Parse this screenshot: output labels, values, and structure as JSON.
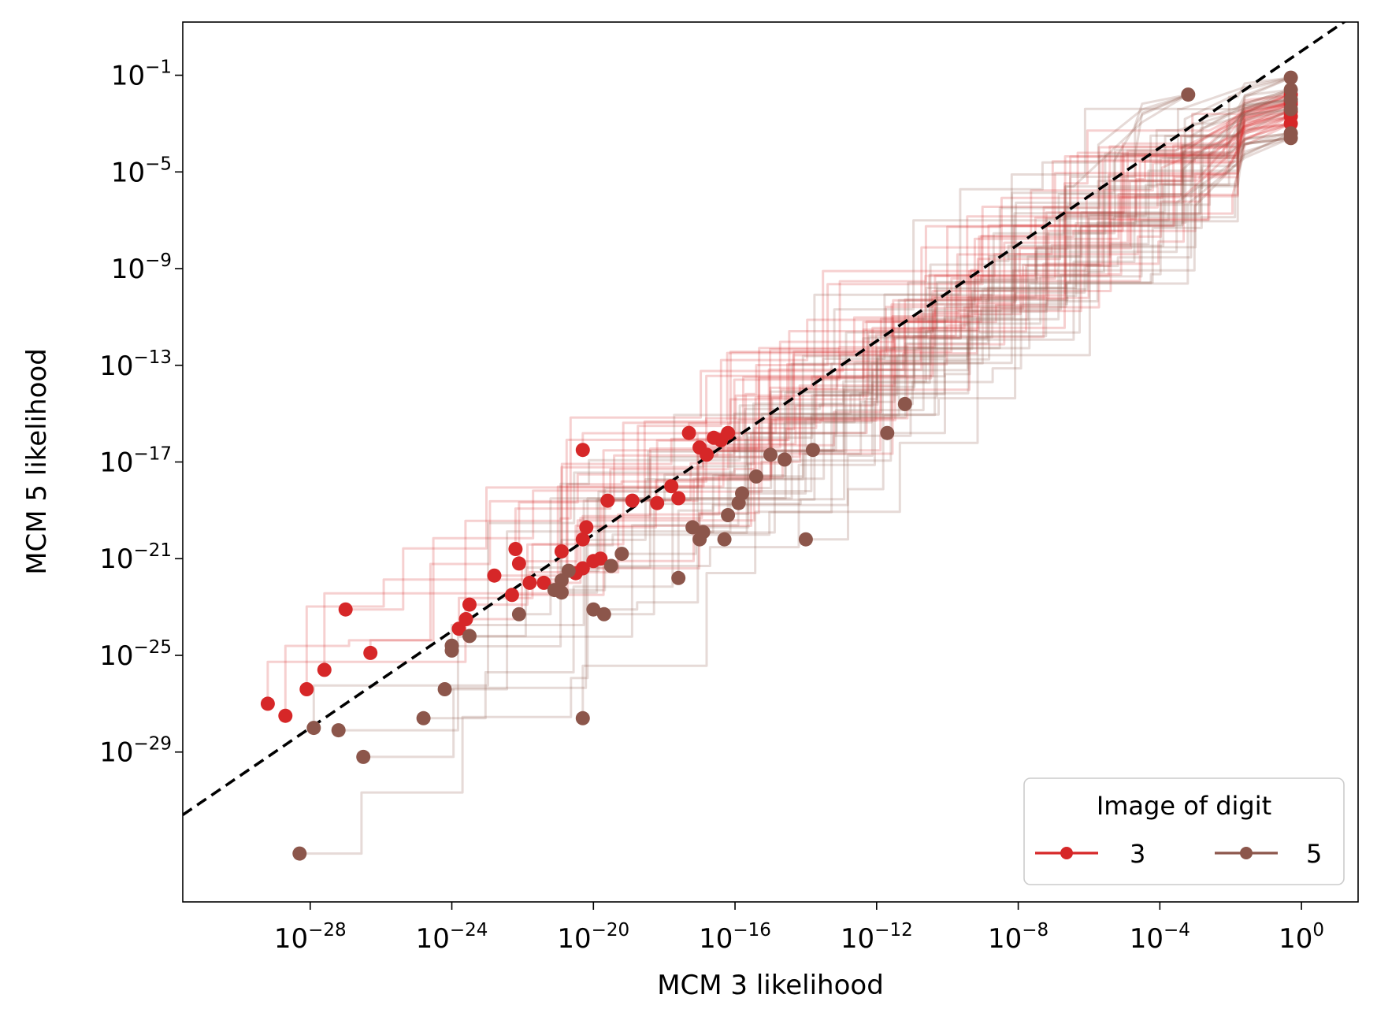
{
  "chart_data": {
    "type": "scatter",
    "title": "",
    "xlabel": "MCM 3 likelihood",
    "ylabel": "MCM 5 likelihood",
    "x_scale": "log",
    "y_scale": "log",
    "xlim_log10": [
      -31.6,
      1.6
    ],
    "ylim_log10": [
      -35.2,
      1.2
    ],
    "x_ticks": [
      {
        "exp": -28,
        "label": "10",
        "sup": "−28"
      },
      {
        "exp": -24,
        "label": "10",
        "sup": "−24"
      },
      {
        "exp": -20,
        "label": "10",
        "sup": "−20"
      },
      {
        "exp": -16,
        "label": "10",
        "sup": "−16"
      },
      {
        "exp": -12,
        "label": "10",
        "sup": "−12"
      },
      {
        "exp": -8,
        "label": "10",
        "sup": "−8"
      },
      {
        "exp": -4,
        "label": "10",
        "sup": "−4"
      },
      {
        "exp": 0,
        "label": "10",
        "sup": "0"
      }
    ],
    "y_ticks": [
      {
        "exp": -1,
        "label": "10",
        "sup": "−1"
      },
      {
        "exp": -5,
        "label": "10",
        "sup": "−5"
      },
      {
        "exp": -9,
        "label": "10",
        "sup": "−9"
      },
      {
        "exp": -13,
        "label": "10",
        "sup": "−13"
      },
      {
        "exp": -17,
        "label": "10",
        "sup": "−17"
      },
      {
        "exp": -21,
        "label": "10",
        "sup": "−21"
      },
      {
        "exp": -25,
        "label": "10",
        "sup": "−25"
      },
      {
        "exp": -29,
        "label": "10",
        "sup": "−29"
      }
    ],
    "grid": false,
    "legend": {
      "title": "Image of digit",
      "position": "bottom-right"
    },
    "reference_line": {
      "label": "",
      "style": "dashed",
      "color": "#000000",
      "from_log10": [
        -31.6,
        -31.6
      ],
      "to_log10": [
        0,
        0
      ]
    },
    "series": [
      {
        "name": "3",
        "color": "#d62728",
        "start_points_log10": [
          [
            -29.2,
            -27.0
          ],
          [
            -28.7,
            -27.5
          ],
          [
            -28.1,
            -26.4
          ],
          [
            -27.6,
            -25.6
          ],
          [
            -27.0,
            -23.1
          ],
          [
            -26.3,
            -24.9
          ],
          [
            -23.8,
            -23.9
          ],
          [
            -23.6,
            -23.5
          ],
          [
            -23.5,
            -22.9
          ],
          [
            -22.8,
            -21.7
          ],
          [
            -22.3,
            -22.5
          ],
          [
            -22.2,
            -20.6
          ],
          [
            -22.1,
            -21.2
          ],
          [
            -21.8,
            -22.0
          ],
          [
            -21.4,
            -22.0
          ],
          [
            -20.9,
            -20.7
          ],
          [
            -20.5,
            -21.6
          ],
          [
            -20.3,
            -20.2
          ],
          [
            -20.3,
            -21.4
          ],
          [
            -20.2,
            -19.7
          ],
          [
            -20.0,
            -21.1
          ],
          [
            -19.8,
            -21.0
          ],
          [
            -19.6,
            -18.6
          ],
          [
            -18.9,
            -18.6
          ],
          [
            -18.2,
            -18.7
          ],
          [
            -17.8,
            -18.0
          ],
          [
            -17.6,
            -18.5
          ],
          [
            -17.3,
            -15.8
          ],
          [
            -17.0,
            -16.4
          ],
          [
            -16.8,
            -16.7
          ],
          [
            -16.6,
            -16.0
          ],
          [
            -16.4,
            -16.1
          ],
          [
            -16.2,
            -15.8
          ],
          [
            -20.3,
            -16.5
          ]
        ],
        "end_points_log10": [
          [
            -0.3,
            -2.2
          ],
          [
            -0.3,
            -2.7
          ],
          [
            -0.3,
            -3.0
          ],
          [
            -0.3,
            -1.8
          ],
          [
            -0.3,
            -2.5
          ],
          [
            -0.3,
            -2.1
          ]
        ]
      },
      {
        "name": "5",
        "color": "#8c564b",
        "start_points_log10": [
          [
            -28.3,
            -33.2
          ],
          [
            -27.9,
            -28.0
          ],
          [
            -27.2,
            -28.1
          ],
          [
            -26.5,
            -29.2
          ],
          [
            -24.8,
            -27.6
          ],
          [
            -24.2,
            -26.4
          ],
          [
            -24.0,
            -24.6
          ],
          [
            -24.0,
            -24.8
          ],
          [
            -23.5,
            -24.2
          ],
          [
            -22.1,
            -23.3
          ],
          [
            -21.1,
            -22.3
          ],
          [
            -20.9,
            -21.9
          ],
          [
            -20.9,
            -22.4
          ],
          [
            -20.7,
            -21.5
          ],
          [
            -20.0,
            -23.1
          ],
          [
            -19.7,
            -23.3
          ],
          [
            -19.5,
            -21.3
          ],
          [
            -20.3,
            -27.6
          ],
          [
            -19.2,
            -20.8
          ],
          [
            -17.6,
            -21.8
          ],
          [
            -17.2,
            -19.7
          ],
          [
            -17.0,
            -20.2
          ],
          [
            -16.9,
            -19.9
          ],
          [
            -16.3,
            -20.2
          ],
          [
            -16.2,
            -19.2
          ],
          [
            -15.9,
            -18.7
          ],
          [
            -15.8,
            -18.3
          ],
          [
            -15.4,
            -17.6
          ],
          [
            -15.0,
            -16.7
          ],
          [
            -14.6,
            -16.9
          ],
          [
            -14.0,
            -20.2
          ],
          [
            -13.8,
            -16.5
          ],
          [
            -11.7,
            -15.8
          ],
          [
            -11.2,
            -14.6
          ]
        ],
        "end_points_log10": [
          [
            -3.2,
            -1.8
          ],
          [
            -0.3,
            -1.1
          ],
          [
            -0.3,
            -1.6
          ],
          [
            -0.3,
            -2.0
          ],
          [
            -0.3,
            -3.4
          ],
          [
            -0.3,
            -3.6
          ],
          [
            -0.3,
            -2.4
          ]
        ]
      }
    ]
  }
}
